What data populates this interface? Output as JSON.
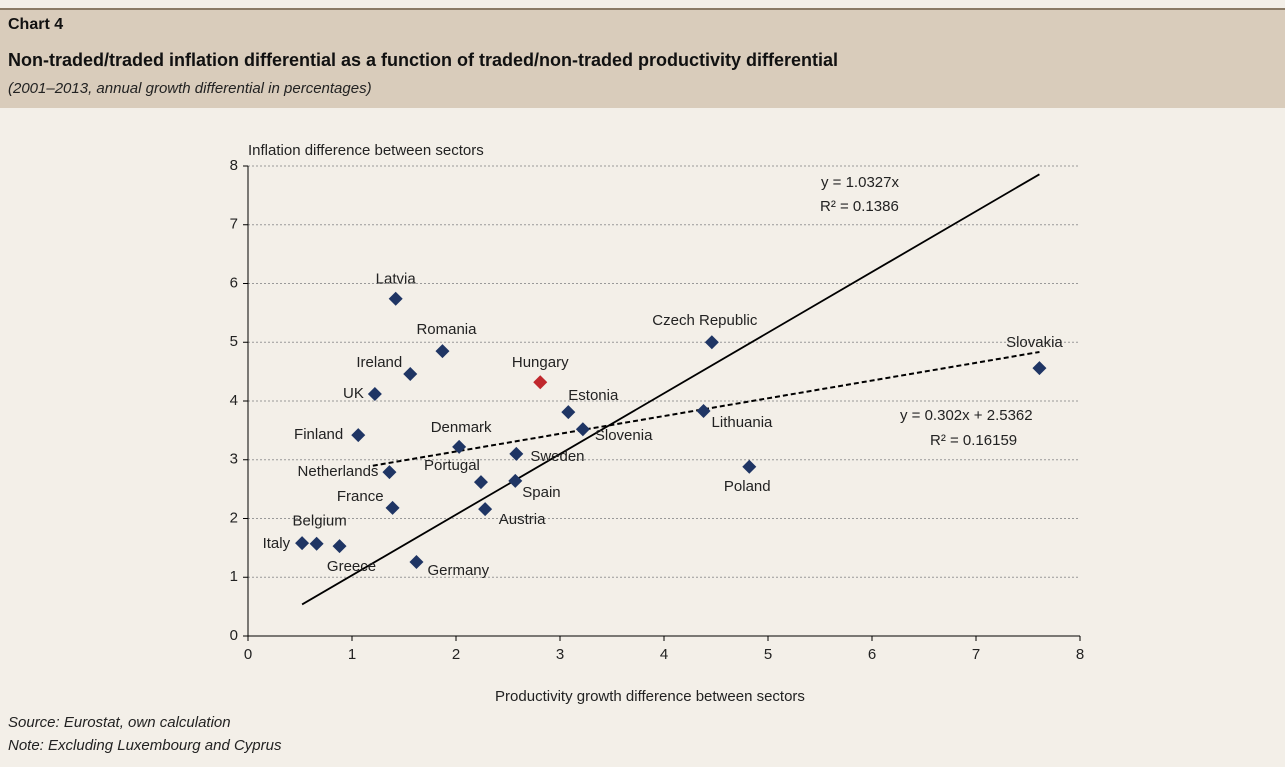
{
  "header": {
    "label": "Chart 4",
    "title": "Non-traded/traded inflation differential as a function of traded/non-traded productivity differential",
    "subtitle": "(2001–2013, annual growth differential in percentages)"
  },
  "chart_data": {
    "type": "scatter",
    "y_axis_label": "Inflation difference between sectors",
    "x_axis_label": "Productivity growth difference between sectors",
    "xlim": [
      0,
      8
    ],
    "xticks": [
      0,
      1,
      2,
      3,
      4,
      5,
      6,
      7,
      8
    ],
    "ylim": [
      0,
      8
    ],
    "yticks": [
      0,
      1,
      2,
      3,
      4,
      5,
      6,
      7,
      8
    ],
    "grid": true,
    "point_labels": [
      "Latvia",
      "Romania",
      "Ireland",
      "UK",
      "Finland",
      "Netherlands",
      "France",
      "Belgium",
      "Italy",
      "Greece",
      "Germany",
      "Denmark",
      "Portugal",
      "Austria",
      "Spain",
      "Sweden",
      "Estonia",
      "Slovenia",
      "Hungary",
      "Czech Republic",
      "Lithuania",
      "Poland",
      "Slovakia"
    ],
    "x": [
      1.42,
      1.87,
      1.56,
      1.22,
      1.06,
      1.36,
      1.39,
      0.66,
      0.52,
      0.88,
      1.62,
      2.03,
      2.24,
      2.28,
      2.57,
      2.58,
      3.08,
      3.22,
      2.81,
      4.46,
      4.38,
      4.82,
      7.61
    ],
    "values": [
      5.74,
      4.85,
      4.46,
      4.12,
      3.42,
      2.79,
      2.18,
      1.57,
      1.58,
      1.53,
      1.26,
      3.22,
      2.62,
      2.16,
      2.64,
      3.1,
      3.81,
      3.52,
      4.32,
      5.0,
      3.83,
      2.88,
      4.56
    ],
    "colors": [
      "#1f3564",
      "#1f3564",
      "#1f3564",
      "#1f3564",
      "#1f3564",
      "#1f3564",
      "#1f3564",
      "#1f3564",
      "#1f3564",
      "#1f3564",
      "#1f3564",
      "#1f3564",
      "#1f3564",
      "#1f3564",
      "#1f3564",
      "#1f3564",
      "#1f3564",
      "#1f3564",
      "#c0282d",
      "#1f3564",
      "#1f3564",
      "#1f3564",
      "#1f3564"
    ],
    "trendlines": [
      {
        "equation": "y = 1.0327x",
        "r2": "R² = 0.1386",
        "slope": 1.0327,
        "intercept": 0,
        "style": "solid"
      },
      {
        "equation": "y = 0.302x + 2.5362",
        "r2": "R² = 0.16159",
        "slope": 0.302,
        "intercept": 2.5362,
        "style": "dashed"
      }
    ]
  },
  "footer": {
    "source": "Source: Eurostat, own calculation",
    "note": "Note: Excluding Luxembourg and Cyprus"
  }
}
